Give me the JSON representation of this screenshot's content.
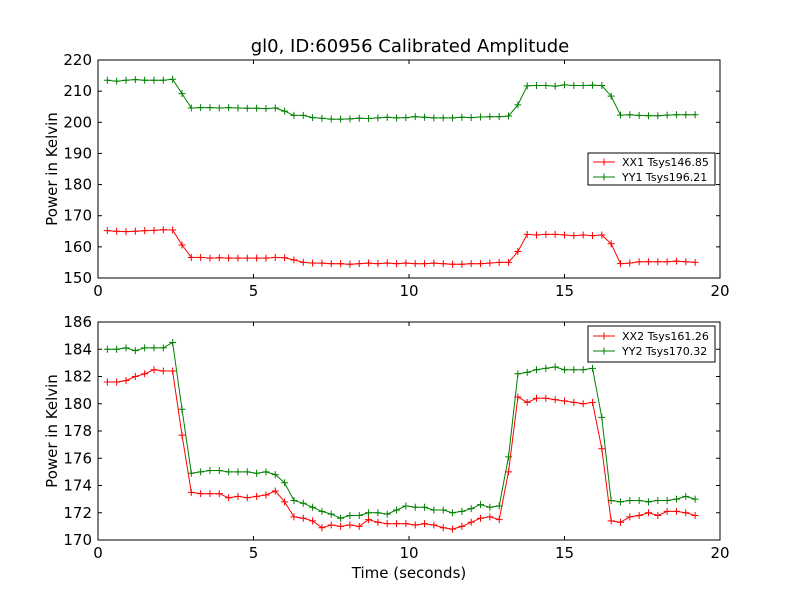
{
  "chart_data": [
    {
      "type": "line",
      "title": "gl0, ID:60956 Calibrated Amplitude",
      "xlabel": "",
      "ylabel": "Power in Kelvin",
      "xlim": [
        0,
        20
      ],
      "ylim": [
        150,
        220
      ],
      "xticks": [
        "0",
        "5",
        "10",
        "15",
        "20"
      ],
      "yticks": [
        "150",
        "160",
        "170",
        "180",
        "190",
        "200",
        "210",
        "220"
      ],
      "grid": false,
      "legend_position": "center-right",
      "x": [
        0.3,
        0.6,
        0.9,
        1.2,
        1.5,
        1.8,
        2.1,
        2.4,
        2.7,
        3.0,
        3.3,
        3.6,
        3.9,
        4.2,
        4.5,
        4.8,
        5.1,
        5.4,
        5.7,
        6.0,
        6.3,
        6.6,
        6.9,
        7.2,
        7.5,
        7.8,
        8.1,
        8.4,
        8.7,
        9.0,
        9.3,
        9.6,
        9.9,
        10.2,
        10.5,
        10.8,
        11.1,
        11.4,
        11.7,
        12.0,
        12.3,
        12.6,
        12.9,
        13.2,
        13.5,
        13.8,
        14.1,
        14.4,
        14.7,
        15.0,
        15.3,
        15.6,
        15.9,
        16.2,
        16.5,
        16.8,
        17.1,
        17.4,
        17.7,
        18.0,
        18.3,
        18.6,
        18.9,
        19.2
      ],
      "series": [
        {
          "name": "XX1 Tsys146.85",
          "color": "#ff0000",
          "values": [
            165.2,
            165.0,
            164.9,
            165.0,
            165.2,
            165.3,
            165.5,
            165.4,
            160.6,
            156.6,
            156.6,
            156.4,
            156.5,
            156.4,
            156.4,
            156.4,
            156.4,
            156.4,
            156.6,
            156.5,
            155.8,
            155.0,
            154.8,
            154.8,
            154.6,
            154.6,
            154.4,
            154.6,
            154.8,
            154.6,
            154.8,
            154.6,
            154.8,
            154.6,
            154.6,
            154.8,
            154.6,
            154.4,
            154.4,
            154.6,
            154.6,
            154.8,
            155.0,
            155.0,
            158.5,
            164.0,
            163.8,
            164.0,
            164.0,
            163.8,
            163.6,
            163.8,
            163.6,
            163.8,
            161.0,
            154.6,
            154.8,
            155.2,
            155.2,
            155.2,
            155.2,
            155.4,
            155.2,
            155.0
          ]
        },
        {
          "name": "YY1 Tsys196.21",
          "color": "#008000",
          "values": [
            213.5,
            213.2,
            213.5,
            213.7,
            213.5,
            213.5,
            213.5,
            213.8,
            209.2,
            204.6,
            204.7,
            204.7,
            204.6,
            204.7,
            204.6,
            204.5,
            204.5,
            204.4,
            204.6,
            203.6,
            202.2,
            202.2,
            201.5,
            201.3,
            201.0,
            201.0,
            201.1,
            201.3,
            201.2,
            201.4,
            201.6,
            201.4,
            201.5,
            201.8,
            201.6,
            201.4,
            201.4,
            201.4,
            201.6,
            201.5,
            201.7,
            201.8,
            201.8,
            202.0,
            205.6,
            211.7,
            211.8,
            211.8,
            211.6,
            212.0,
            211.8,
            211.8,
            211.9,
            211.8,
            208.4,
            202.3,
            202.4,
            202.2,
            202.1,
            202.1,
            202.3,
            202.4,
            202.4,
            202.4
          ]
        }
      ]
    },
    {
      "type": "line",
      "title": "",
      "xlabel": "Time (seconds)",
      "ylabel": "Power in Kelvin",
      "xlim": [
        0,
        20
      ],
      "ylim": [
        170,
        186
      ],
      "xticks": [
        "0",
        "5",
        "10",
        "15",
        "20"
      ],
      "yticks": [
        "170",
        "172",
        "174",
        "176",
        "178",
        "180",
        "182",
        "184",
        "186"
      ],
      "grid": false,
      "legend_position": "top-right",
      "x": [
        0.3,
        0.6,
        0.9,
        1.2,
        1.5,
        1.8,
        2.1,
        2.4,
        2.7,
        3.0,
        3.3,
        3.6,
        3.9,
        4.2,
        4.5,
        4.8,
        5.1,
        5.4,
        5.7,
        6.0,
        6.3,
        6.6,
        6.9,
        7.2,
        7.5,
        7.8,
        8.1,
        8.4,
        8.7,
        9.0,
        9.3,
        9.6,
        9.9,
        10.2,
        10.5,
        10.8,
        11.1,
        11.4,
        11.7,
        12.0,
        12.3,
        12.6,
        12.9,
        13.2,
        13.5,
        13.8,
        14.1,
        14.4,
        14.7,
        15.0,
        15.3,
        15.6,
        15.9,
        16.2,
        16.5,
        16.8,
        17.1,
        17.4,
        17.7,
        18.0,
        18.3,
        18.6,
        18.9,
        19.2
      ],
      "series": [
        {
          "name": "XX2 Tsys161.26",
          "color": "#ff0000",
          "values": [
            181.6,
            181.6,
            181.7,
            182.0,
            182.2,
            182.5,
            182.4,
            182.4,
            177.7,
            173.5,
            173.4,
            173.4,
            173.4,
            173.1,
            173.2,
            173.1,
            173.2,
            173.3,
            173.6,
            172.8,
            171.7,
            171.6,
            171.4,
            170.9,
            171.1,
            171.0,
            171.1,
            171.0,
            171.5,
            171.3,
            171.2,
            171.2,
            171.2,
            171.1,
            171.2,
            171.1,
            170.9,
            170.8,
            171.0,
            171.3,
            171.6,
            171.7,
            171.5,
            175.0,
            180.5,
            180.1,
            180.4,
            180.4,
            180.3,
            180.2,
            180.1,
            180.0,
            180.1,
            176.7,
            171.4,
            171.3,
            171.7,
            171.8,
            172.0,
            171.8,
            172.1,
            172.1,
            172.0,
            171.8
          ]
        },
        {
          "name": "YY2 Tsys170.32",
          "color": "#008000",
          "values": [
            184.0,
            184.0,
            184.1,
            183.9,
            184.1,
            184.1,
            184.1,
            184.5,
            179.6,
            174.9,
            175.0,
            175.1,
            175.1,
            175.0,
            175.0,
            175.0,
            174.9,
            175.0,
            174.8,
            174.2,
            172.9,
            172.7,
            172.4,
            172.1,
            171.9,
            171.6,
            171.8,
            171.8,
            172.0,
            172.0,
            171.9,
            172.2,
            172.5,
            172.4,
            172.4,
            172.2,
            172.2,
            172.0,
            172.1,
            172.3,
            172.6,
            172.4,
            172.5,
            176.1,
            182.2,
            182.3,
            182.5,
            182.6,
            182.7,
            182.5,
            182.5,
            182.5,
            182.6,
            179.0,
            172.9,
            172.8,
            172.9,
            172.9,
            172.8,
            172.9,
            172.9,
            173.0,
            173.2,
            173.0
          ]
        }
      ]
    }
  ]
}
